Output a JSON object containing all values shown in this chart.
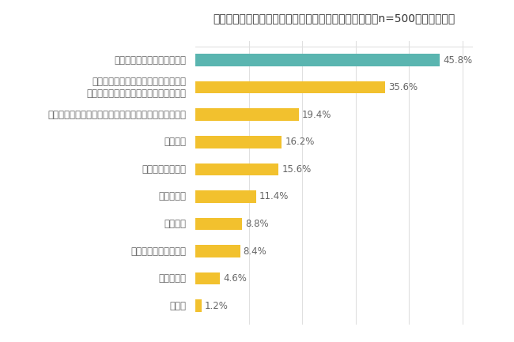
{
  "title": "勤務先で従業員がテレワークの対象となるための条件（n=500，複数回答）",
  "categories": [
    "その他",
    "わからない",
    "自宅から勤務先の距離",
    "勤続期間",
    "条件はない",
    "役職・ポジション",
    "雇用形態",
    "社員全員が対象だが、書類の提出をともなう申請が必要",
    "何らかの事情により通勤が難しいこと\n（育児、介護、妊娠、怪我・病気など）",
    "仕事内容（外勤・内勤など）"
  ],
  "values": [
    1.2,
    4.6,
    8.4,
    8.8,
    11.4,
    15.6,
    16.2,
    19.4,
    35.6,
    45.8
  ],
  "bar_colors": [
    "#f2c12e",
    "#f2c12e",
    "#f2c12e",
    "#f2c12e",
    "#f2c12e",
    "#f2c12e",
    "#f2c12e",
    "#f2c12e",
    "#f2c12e",
    "#5ab5b0"
  ],
  "xlim": [
    0,
    52
  ],
  "title_fontsize": 10,
  "label_fontsize": 8.5,
  "value_fontsize": 8.5,
  "background_color": "#ffffff",
  "grid_color": "#e0e0e0",
  "bar_height": 0.45,
  "text_color": "#666666",
  "title_color": "#333333"
}
